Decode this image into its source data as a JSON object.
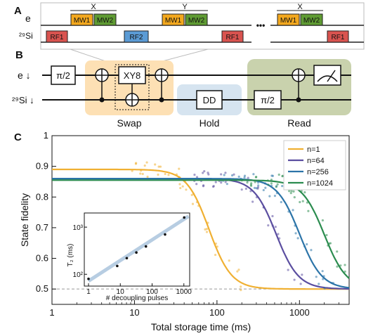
{
  "panelA": {
    "label": "A",
    "row_e_label": "e",
    "row_si_label": "²⁹Si",
    "groups": [
      {
        "gate": "X",
        "mw1": "MW1",
        "mw2": "MW2",
        "rf_left": "RF1",
        "rf_right": ""
      },
      {
        "gate": "Y",
        "mw1": "MW1",
        "mw2": "MW2",
        "rf_left": "RF2",
        "rf_right": "RF1"
      },
      {
        "gate": "X",
        "mw1": "MW1",
        "mw2": "MW2",
        "rf_left": "",
        "rf_right": "RF1"
      }
    ],
    "ellipsis": "•••",
    "colors": {
      "mw1": "#f3a81e",
      "mw2": "#5f9b33",
      "rf1": "#d9534f",
      "rf2": "#5b9bd5"
    }
  },
  "panelB": {
    "label": "B",
    "row_e_label": "e ↓",
    "row_si_label": "²⁹Si ↓",
    "gates": {
      "pi_half_e": "π/2",
      "xy8": "XY8",
      "dd": "DD",
      "pi_half_si": "π/2"
    },
    "stages": [
      "Swap",
      "Hold",
      "Read"
    ],
    "colors": {
      "swap": "#fde0b4",
      "hold": "#d6e4f0",
      "read": "#c9d2ad"
    }
  },
  "panelC": {
    "label": "C",
    "chart_data": {
      "type": "scatter",
      "xlabel": "Total storage time (ms)",
      "ylabel": "State fidelity",
      "xscale": "log",
      "xlim": [
        1,
        4000
      ],
      "ylim": [
        0.45,
        1.0
      ],
      "x_ticks": [
        "1",
        "10",
        "100",
        "1000"
      ],
      "y_ticks": [
        "0.5",
        "0.6",
        "0.7",
        "0.8",
        "0.9",
        "1"
      ],
      "reference_line": 0.5,
      "legend_position": "top-right",
      "series": [
        {
          "name": "n=1",
          "color": "#f0b032",
          "plateau": 0.89,
          "t_half_ms": 80,
          "x": [
            1,
            5,
            20,
            40,
            60,
            80,
            100,
            150,
            200
          ],
          "y": [
            0.89,
            0.89,
            0.87,
            0.82,
            0.75,
            0.69,
            0.6,
            0.52,
            0.5
          ]
        },
        {
          "name": "n=64",
          "color": "#5b4ea0",
          "plateau": 0.86,
          "t_half_ms": 520,
          "x": [
            40,
            100,
            200,
            300,
            400,
            500,
            600,
            800,
            1000
          ],
          "y": [
            0.86,
            0.85,
            0.83,
            0.8,
            0.75,
            0.68,
            0.62,
            0.55,
            0.5
          ]
        },
        {
          "name": "n=256",
          "color": "#2c74a8",
          "plateau": 0.86,
          "t_half_ms": 1000,
          "x": [
            100,
            300,
            500,
            700,
            900,
            1000,
            1200,
            1500,
            2000
          ],
          "y": [
            0.86,
            0.86,
            0.84,
            0.8,
            0.72,
            0.68,
            0.61,
            0.54,
            0.5
          ]
        },
        {
          "name": "n=1024",
          "color": "#2b8c4f",
          "plateau": 0.855,
          "t_half_ms": 2000,
          "x": [
            200,
            500,
            1000,
            1500,
            2000,
            2500,
            3000,
            4000
          ],
          "y": [
            0.855,
            0.85,
            0.84,
            0.8,
            0.68,
            0.6,
            0.54,
            0.5
          ]
        }
      ],
      "inset": {
        "type": "scatter",
        "xlabel": "# decoupling pulses",
        "ylabel": "T₂ (ms)",
        "xscale": "log",
        "yscale": "log",
        "x_ticks": [
          "1",
          "10",
          "100",
          "1000"
        ],
        "y_ticks": [
          "10²",
          "10³"
        ],
        "x": [
          1,
          8,
          16,
          32,
          64,
          256,
          1024
        ],
        "y": [
          80,
          150,
          220,
          290,
          390,
          700,
          1600
        ]
      }
    }
  }
}
